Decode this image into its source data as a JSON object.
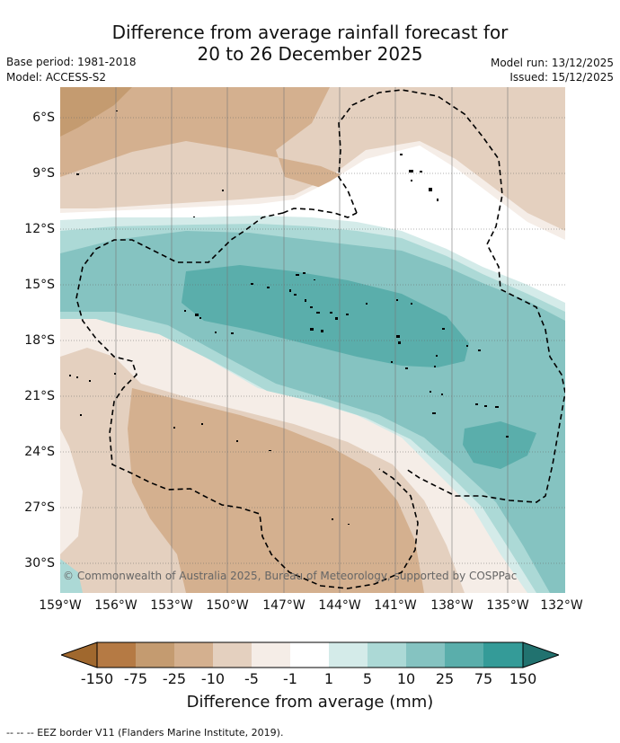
{
  "title_line1": "Difference from average rainfall forecast for",
  "title_line2": "20 to 26 December 2025",
  "base_period": "Base period: 1981-2018",
  "model": "Model: ACCESS-S2",
  "model_run": "Model run: 13/12/2025",
  "issued": "Issued: 15/12/2025",
  "lat_labels": [
    "6°S",
    "9°S",
    "12°S",
    "15°S",
    "18°S",
    "21°S",
    "24°S",
    "27°S",
    "30°S"
  ],
  "lon_labels": [
    "159°W",
    "156°W",
    "153°W",
    "150°W",
    "147°W",
    "144°W",
    "141°W",
    "138°W",
    "135°W",
    "132°W"
  ],
  "colorbar": {
    "labels": [
      "-150",
      "-75",
      "-25",
      "-10",
      "-5",
      "-1",
      "1",
      "5",
      "10",
      "25",
      "75",
      "150"
    ],
    "colors": [
      "#a0682e",
      "#b57a44",
      "#c49b70",
      "#d4b08f",
      "#e4d0bf",
      "#f5ede7",
      "#ffffff",
      "#d4ebe9",
      "#acd9d6",
      "#85c3c1",
      "#5aaeab",
      "#349b98",
      "#21726f"
    ],
    "title": "Difference from average (mm)"
  },
  "copyright": "© Commonwealth of Australia 2025, Bureau of Meteorology, supported by COSPPac",
  "footer": "-- -- -- EEZ border V11 (Flanders Marine Institute, 2019)."
}
